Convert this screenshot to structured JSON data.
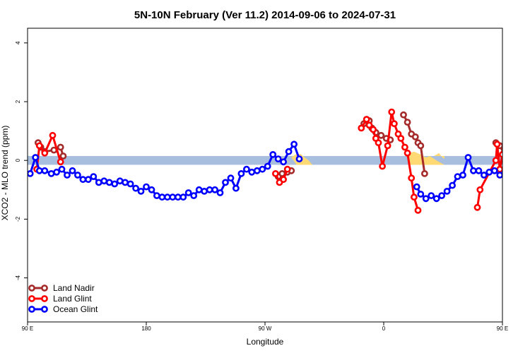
{
  "chart_data": {
    "type": "line",
    "title": "5N-10N February (Ver 11.2)   2014-09-06 to 2024-07-31",
    "xlabel": "Longitude",
    "ylabel": "XCO2 - MLO trend (ppm)",
    "xlim": [
      90,
      450
    ],
    "ylim": [
      -5.5,
      4.5
    ],
    "x_ticks": [
      {
        "value": 90,
        "label": "90 E"
      },
      {
        "value": 180,
        "label": "180"
      },
      {
        "value": 270,
        "label": "90 W"
      },
      {
        "value": 360,
        "label": "0"
      },
      {
        "value": 450,
        "label": "90 E"
      },
      {
        "value": 540,
        "label": "180"
      }
    ],
    "y_ticks": [
      {
        "value": -4,
        "label": "-4"
      },
      {
        "value": -2,
        "label": "-2"
      },
      {
        "value": 0,
        "label": "0"
      },
      {
        "value": 2,
        "label": "2"
      },
      {
        "value": 4,
        "label": "4"
      }
    ],
    "band": {
      "ymin": -0.15,
      "ymax": 0.15,
      "color": "#a7bede"
    },
    "land_mask": {
      "color": "#ffd974",
      "segments": [
        [
          [
            279,
            0.15
          ],
          [
            281,
            0.12
          ],
          [
            285,
            0.05
          ],
          [
            288,
            -0.05
          ],
          [
            292,
            -0.15
          ]
        ],
        [
          [
            290,
            0.1
          ],
          [
            293,
            0.2
          ],
          [
            297,
            0.22
          ],
          [
            300,
            0.1
          ],
          [
            303,
            0.0
          ],
          [
            306,
            -0.15
          ],
          [
            294,
            -0.15
          ]
        ],
        [
          [
            378,
            0.15
          ],
          [
            380,
            0.25
          ],
          [
            383,
            0.3
          ],
          [
            388,
            0.2
          ],
          [
            392,
            0.1
          ],
          [
            395,
            0.15
          ],
          [
            400,
            0.0
          ],
          [
            406,
            -0.15
          ],
          [
            380,
            -0.15
          ]
        ],
        [
          [
            398,
            0.15
          ],
          [
            402,
            0.25
          ],
          [
            404,
            0.12
          ],
          [
            406,
            0.05
          ],
          [
            406,
            0.15
          ]
        ]
      ]
    },
    "legend": [
      {
        "name": "Land Nadir",
        "color": "#a52a2a"
      },
      {
        "name": "Land Glint",
        "color": "#ff0000"
      },
      {
        "name": "Ocean Glint",
        "color": "#0000ff"
      }
    ],
    "legend_position": "bottom-left",
    "series": [
      {
        "name": "Land Nadir",
        "color": "#a52a2a",
        "segments": [
          [
            [
              98,
              0.6
            ],
            [
              100,
              0.45
            ],
            [
              103,
              0.3
            ],
            [
              110,
              0.35
            ],
            [
              115,
              0.45
            ],
            [
              117,
              0.15
            ]
          ],
          [
            [
              280,
              -0.55
            ],
            [
              283,
              -0.45
            ],
            [
              287,
              -0.4
            ],
            [
              290,
              -0.35
            ]
          ],
          [
            [
              345,
              1.25
            ],
            [
              349,
              1.35
            ],
            [
              351,
              1.1
            ],
            [
              354,
              0.95
            ],
            [
              358,
              0.85
            ],
            [
              362,
              0.75
            ],
            [
              365,
              0.7
            ]
          ],
          [
            [
              375,
              1.55
            ],
            [
              378,
              1.3
            ],
            [
              381,
              0.9
            ],
            [
              384,
              0.8
            ],
            [
              386,
              0.6
            ],
            [
              388,
              0.5
            ],
            [
              391,
              -0.45
            ]
          ],
          [
            [
              445,
              0.6
            ],
            [
              448,
              0.5
            ],
            [
              451,
              0.25
            ],
            [
              456,
              0.35
            ],
            [
              461,
              0.5
            ],
            [
              463,
              0.15
            ]
          ]
        ]
      },
      {
        "name": "Land Glint",
        "color": "#ff0000",
        "segments": [
          [
            [
              97,
              -0.3
            ],
            [
              99,
              0.5
            ],
            [
              103,
              0.25
            ],
            [
              109,
              0.85
            ],
            [
              115,
              -0.05
            ]
          ],
          [
            [
              278,
              -0.45
            ],
            [
              281,
              -0.75
            ],
            [
              284,
              -0.65
            ],
            [
              287,
              -0.3
            ]
          ],
          [
            [
              343,
              1.1
            ],
            [
              347,
              1.4
            ],
            [
              349,
              1.2
            ],
            [
              352,
              1.05
            ],
            [
              354,
              0.75
            ],
            [
              356,
              0.6
            ],
            [
              359,
              -0.2
            ],
            [
              363,
              0.5
            ],
            [
              366,
              1.65
            ],
            [
              368,
              1.25
            ],
            [
              371,
              0.9
            ],
            [
              373,
              0.75
            ],
            [
              376,
              0.45
            ],
            [
              378,
              0.25
            ],
            [
              381,
              -0.6
            ],
            [
              383,
              -1.25
            ],
            [
              386,
              -1.7
            ]
          ],
          [
            [
              431,
              -1.6
            ],
            [
              433,
              -1.0
            ],
            [
              445,
              0.0
            ],
            [
              446,
              0.55
            ],
            [
              448,
              -0.3
            ],
            [
              450,
              0.2
            ]
          ],
          [
            [
              466,
              0.85
            ],
            [
              470,
              0.4
            ],
            [
              473,
              0.2
            ],
            [
              475,
              -0.05
            ]
          ]
        ]
      },
      {
        "name": "Ocean Glint",
        "color": "#0000ff",
        "segments": [
          [
            [
              92,
              -0.45
            ],
            [
              96,
              0.1
            ],
            [
              99,
              -0.35
            ],
            [
              103,
              -0.35
            ],
            [
              108,
              -0.45
            ],
            [
              112,
              -0.4
            ],
            [
              116,
              -0.3
            ],
            [
              120,
              -0.5
            ],
            [
              124,
              -0.35
            ],
            [
              128,
              -0.5
            ],
            [
              132,
              -0.65
            ],
            [
              136,
              -0.65
            ],
            [
              140,
              -0.55
            ],
            [
              144,
              -0.75
            ],
            [
              148,
              -0.7
            ],
            [
              152,
              -0.75
            ],
            [
              156,
              -0.8
            ],
            [
              160,
              -0.7
            ],
            [
              164,
              -0.75
            ],
            [
              168,
              -0.8
            ],
            [
              172,
              -0.95
            ],
            [
              176,
              -1.05
            ],
            [
              180,
              -0.9
            ],
            [
              184,
              -1.0
            ],
            [
              188,
              -1.2
            ],
            [
              192,
              -1.25
            ],
            [
              196,
              -1.25
            ],
            [
              200,
              -1.25
            ],
            [
              204,
              -1.25
            ],
            [
              208,
              -1.25
            ],
            [
              212,
              -1.1
            ],
            [
              216,
              -1.2
            ],
            [
              220,
              -1.0
            ],
            [
              224,
              -1.05
            ],
            [
              228,
              -1.0
            ],
            [
              232,
              -1.0
            ],
            [
              236,
              -1.1
            ],
            [
              240,
              -0.75
            ],
            [
              244,
              -0.6
            ],
            [
              248,
              -0.95
            ],
            [
              252,
              -0.45
            ],
            [
              256,
              -0.3
            ],
            [
              260,
              -0.4
            ],
            [
              264,
              -0.35
            ],
            [
              268,
              -0.3
            ],
            [
              272,
              -0.2
            ],
            [
              276,
              0.2
            ],
            [
              280,
              0.05
            ],
            [
              284,
              -0.05
            ],
            [
              288,
              0.3
            ],
            [
              292,
              0.55
            ],
            [
              296,
              0.05
            ]
          ],
          [
            [
              385,
              -0.9
            ],
            [
              388,
              -1.15
            ],
            [
              392,
              -1.3
            ],
            [
              396,
              -1.2
            ],
            [
              400,
              -1.3
            ],
            [
              404,
              -1.2
            ],
            [
              408,
              -1.05
            ],
            [
              412,
              -0.85
            ],
            [
              416,
              -0.55
            ],
            [
              420,
              -0.5
            ],
            [
              424,
              0.1
            ],
            [
              428,
              -0.35
            ],
            [
              432,
              -0.35
            ],
            [
              436,
              -0.5
            ],
            [
              440,
              -0.4
            ],
            [
              444,
              -0.35
            ],
            [
              448,
              -0.5
            ],
            [
              452,
              -0.4
            ],
            [
              456,
              -0.5
            ],
            [
              460,
              -0.6
            ],
            [
              464,
              -0.6
            ],
            [
              468,
              -0.55
            ],
            [
              472,
              -0.7
            ],
            [
              476,
              -0.65
            ],
            [
              480,
              -0.7
            ],
            [
              484,
              -0.8
            ],
            [
              488,
              -0.75
            ]
          ]
        ]
      }
    ]
  }
}
